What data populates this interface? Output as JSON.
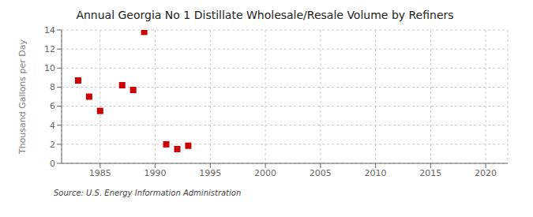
{
  "chart_data": {
    "type": "scatter",
    "title": "Annual Georgia No 1 Distillate Wholesale/Resale Volume by Refiners",
    "ylabel": "Thousand Gallons per Day",
    "annotations": [
      "Source: U.S. Energy Information Administration"
    ],
    "x": [
      1983,
      1984,
      1985,
      1987,
      1988,
      1989,
      1991,
      1992,
      1993
    ],
    "values": [
      8.7,
      7.0,
      5.5,
      8.2,
      7.7,
      13.8,
      2.0,
      1.5,
      1.85
    ],
    "color": "#cc0000",
    "marker": "square",
    "xlim": [
      1981.5,
      2022
    ],
    "ylim": [
      0,
      14
    ],
    "xticks": [
      1985,
      1990,
      1995,
      2000,
      2005,
      2010,
      2015,
      2020
    ],
    "yticks": [
      0,
      2,
      4,
      6,
      8,
      10,
      12,
      14
    ],
    "grid": true
  }
}
